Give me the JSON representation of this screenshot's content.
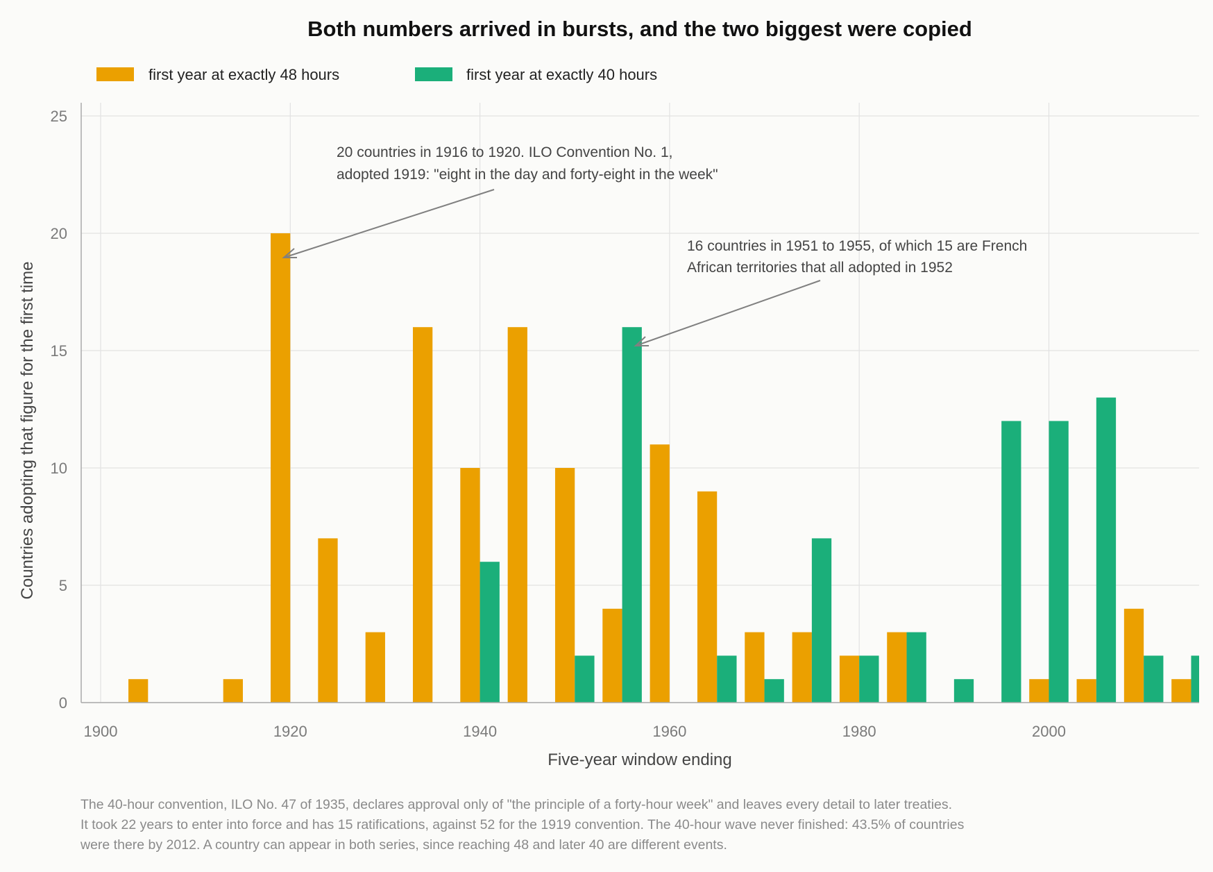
{
  "chart_data": {
    "type": "bar",
    "title": "Both numbers arrived in bursts, and the two biggest were copied",
    "xlabel": "Five-year window ending",
    "ylabel": "Countries adopting that figure for the first time",
    "xlim": [
      1899,
      2016
    ],
    "ylim": [
      0,
      27
    ],
    "grid": true,
    "legend_position": "top-left",
    "x_ticks": [
      1900,
      1920,
      1940,
      1960,
      1980,
      2000
    ],
    "y_ticks": [
      0,
      5,
      10,
      15,
      20,
      25
    ],
    "categories": [
      1905,
      1915,
      1920,
      1925,
      1930,
      1935,
      1940,
      1945,
      1950,
      1955,
      1960,
      1965,
      1970,
      1975,
      1980,
      1985,
      1990,
      1995,
      2000,
      2005,
      2010,
      2015
    ],
    "series": [
      {
        "name": "first year at exactly 48 hours",
        "color": "#eba000",
        "values": [
          1,
          1,
          20,
          7,
          3,
          16,
          10,
          16,
          10,
          4,
          11,
          9,
          3,
          3,
          2,
          3,
          0,
          0,
          1,
          1,
          4,
          1
        ]
      },
      {
        "name": "first year at exactly 40 hours",
        "color": "#1baf7a",
        "values": [
          0,
          0,
          0,
          0,
          0,
          0,
          6,
          0,
          2,
          16,
          0,
          2,
          1,
          7,
          2,
          3,
          1,
          12,
          12,
          13,
          2,
          2
        ]
      }
    ],
    "annotations": [
      {
        "lines": [
          "20 countries in 1916 to 1920. ILO Convention No. 1,",
          "adopted 1919: \"eight in the day and forty-eight in the week\""
        ],
        "target_x": 1920,
        "target_y": 20
      },
      {
        "lines": [
          "16 countries in 1951 to 1955, of which 15 are French",
          "African territories that all adopted in 1952"
        ],
        "target_x": 1955,
        "target_y": 16
      }
    ],
    "note": [
      "The 40-hour convention, ILO No. 47 of 1935, declares approval only of \"the principle of a forty-hour week\" and leaves every detail to later treaties.",
      "It took 22 years to enter into force and has 15 ratifications, against 52 for the 1919 convention. The 40-hour wave never finished: 43.5% of countries",
      "were there by 2012. A country can appear in both series, since reaching 48 and later 40 are different events."
    ],
    "colors": {
      "axis": "#aaaaaa",
      "grid": "#e2e2e2",
      "arrow": "#808080"
    }
  }
}
